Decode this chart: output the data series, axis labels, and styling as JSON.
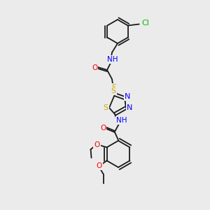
{
  "bg_color": "#ebebeb",
  "bond_color": "#1a1a1a",
  "atom_colors": {
    "N": "#0000ff",
    "O": "#ff0000",
    "S": "#ccaa00",
    "Cl": "#00bb00",
    "C": "#1a1a1a",
    "H": "#1a1a1a"
  },
  "figsize": [
    3.0,
    3.0
  ],
  "dpi": 100
}
